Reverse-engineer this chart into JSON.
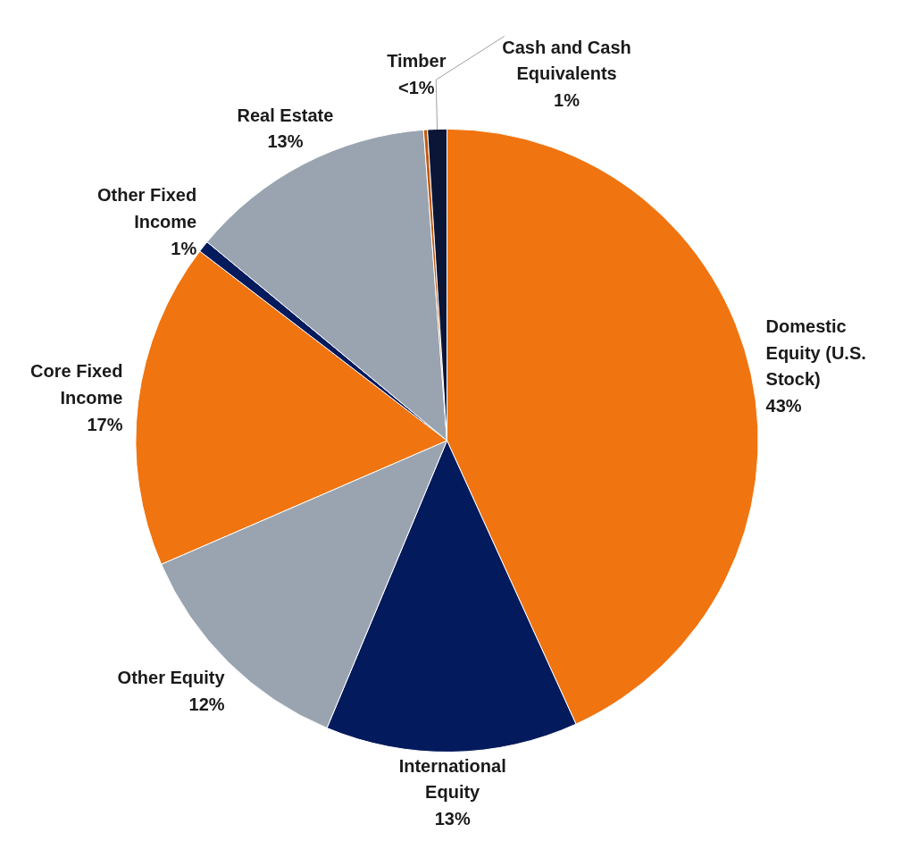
{
  "chart_data": {
    "type": "pie",
    "categories": [
      "Domestic Equity (U.S. Stock)",
      "International Equity",
      "Other Equity",
      "Core Fixed Income",
      "Other Fixed Income",
      "Real Estate",
      "Timber",
      "Cash and Cash Equivalents"
    ],
    "values": [
      43.2,
      13.1,
      12.2,
      16.9,
      0.6,
      12.8,
      0.2,
      1.0
    ],
    "value_labels": [
      "43%",
      "13%",
      "12%",
      "17%",
      "1%",
      "13%",
      "<1%",
      "1%"
    ],
    "colors": [
      "#f07410",
      "#031a5c",
      "#9aa4b1",
      "#f07410",
      "#031a5c",
      "#9aa4b1",
      "#c05a10",
      "#0b1535"
    ]
  }
}
